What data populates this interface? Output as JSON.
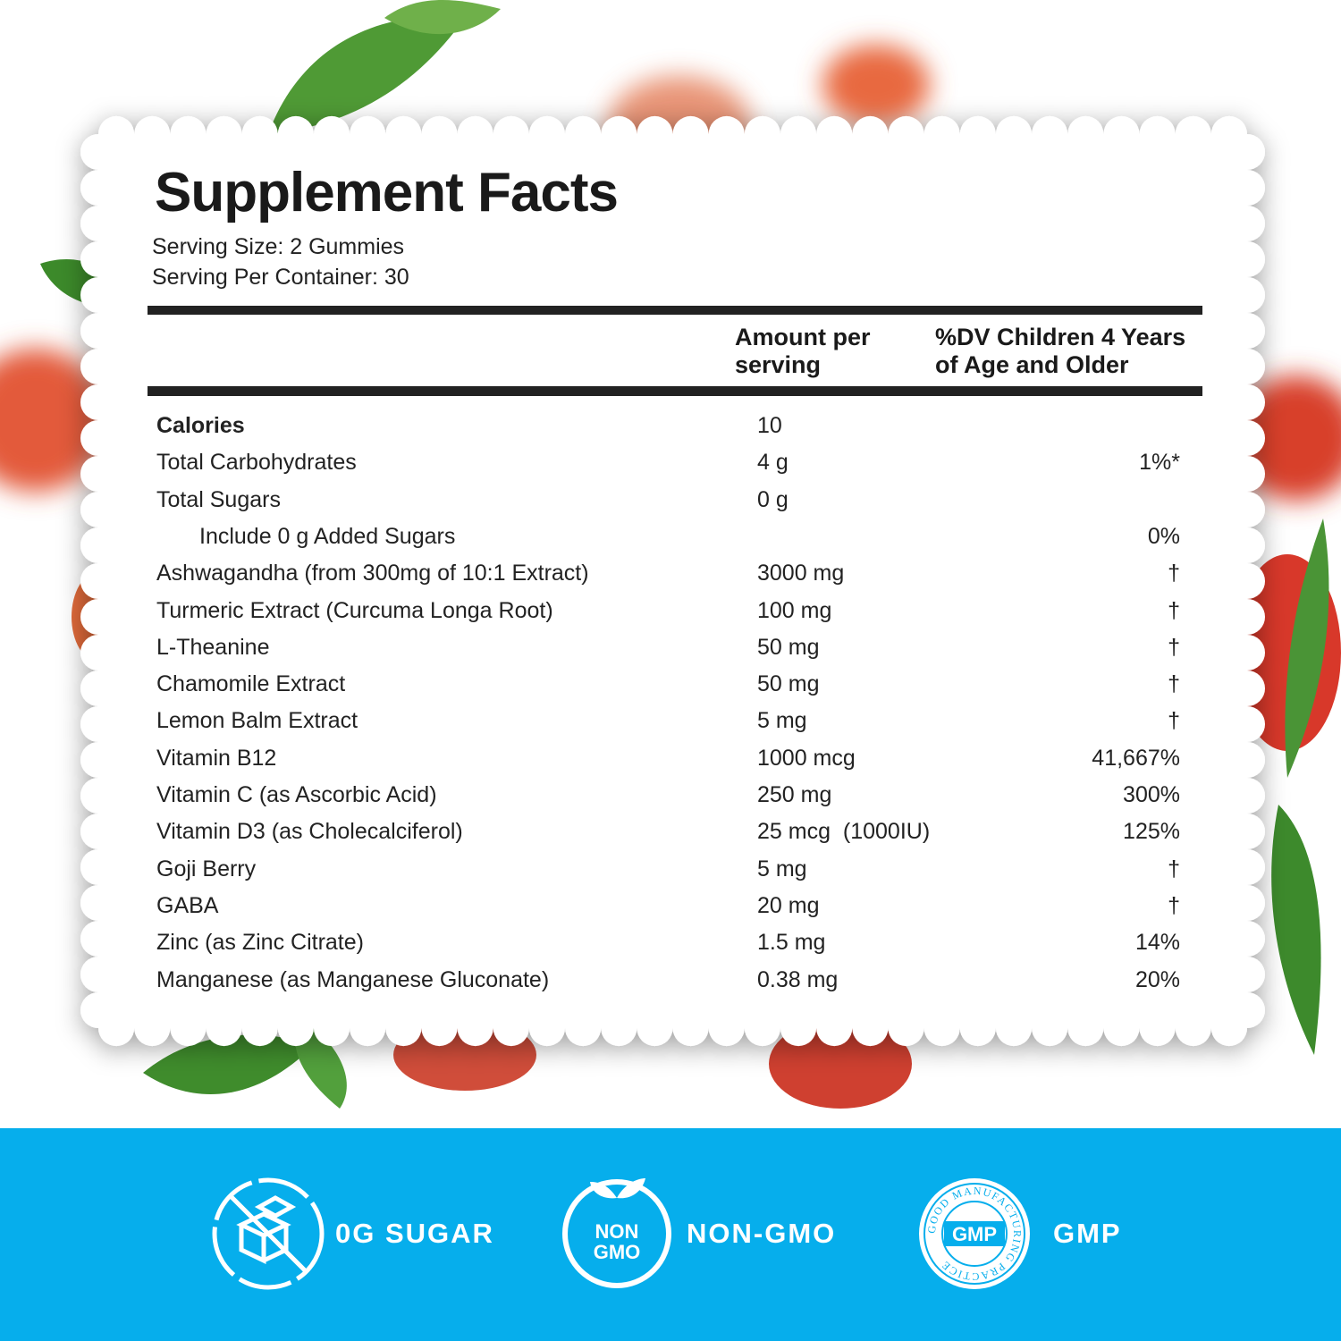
{
  "header": {
    "title": "Supplement Facts",
    "serving_size": "Serving Size: 2 Gummies",
    "servings_per_container": "Serving Per Container: 30"
  },
  "table": {
    "columns": [
      "Amount per serving",
      "%DV Children 4 Years of Age and Older"
    ],
    "rows": [
      {
        "name": "Calories",
        "amount": "10",
        "bold": true
      },
      {
        "name": "Total Carbohydrates",
        "amount": "4 g",
        "dv": "1%*"
      },
      {
        "name": "Total Sugars",
        "amount": "0 g"
      },
      {
        "name": "Include 0 g Added Sugars",
        "dv": "0%",
        "indent": true
      },
      {
        "name": "Ashwagandha (from 300mg of 10:1 Extract)",
        "amount": "3000 mg",
        "dv": "†"
      },
      {
        "name": "Turmeric Extract (Curcuma Longa Root)",
        "amount": "100 mg",
        "dv": "†"
      },
      {
        "name": "L-Theanine",
        "amount": "50 mg",
        "dv": "†"
      },
      {
        "name": "Chamomile Extract",
        "amount": "50 mg",
        "dv": "†"
      },
      {
        "name": "Lemon Balm Extract",
        "amount": "5 mg",
        "dv": "†"
      },
      {
        "name": "Vitamin B12",
        "amount": "1000 mcg",
        "dv": "41,667%"
      },
      {
        "name": "Vitamin C (as Ascorbic Acid)",
        "amount": "250 mg",
        "dv": "300%"
      },
      {
        "name": "Vitamin D3 (as Cholecalciferol)",
        "amount": "25 mcg  (1000IU)",
        "dv": "125%"
      },
      {
        "name": "Goji Berry",
        "amount": "5 mg",
        "dv": "†"
      },
      {
        "name": "GABA",
        "amount": "20 mg",
        "dv": "†"
      },
      {
        "name": "Zinc (as Zinc Citrate)",
        "amount": "1.5 mg",
        "dv": "14%"
      },
      {
        "name": "Manganese (as Manganese Gluconate)",
        "amount": "0.38 mg",
        "dv": "20%"
      }
    ]
  },
  "badges": [
    {
      "label": "0G SUGAR"
    },
    {
      "label": "NON-GMO",
      "icon_text": [
        "NON",
        "GMO"
      ]
    },
    {
      "label": "GMP",
      "icon_text": [
        "GMP"
      ],
      "ring_text": "GOOD MANUFACTURING PRACTICE"
    }
  ]
}
